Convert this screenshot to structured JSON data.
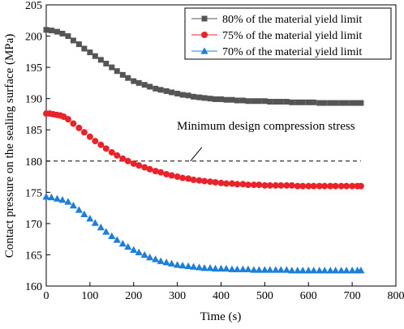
{
  "chart_data": {
    "type": "scatter",
    "xlabel": "Time (s)",
    "ylabel": "Contact pressure on the sealing surface (MPa)",
    "xlim": [
      0,
      800
    ],
    "ylim": [
      160,
      205
    ],
    "xticks": [
      0,
      100,
      200,
      300,
      400,
      500,
      600,
      700,
      800
    ],
    "yticks": [
      160,
      165,
      170,
      175,
      180,
      185,
      190,
      195,
      200,
      205
    ],
    "legend_position": "top-right",
    "series": [
      {
        "name": "80% of the material yield limit",
        "marker": "square",
        "color": "#555555",
        "x": [
          0,
          12,
          25,
          37,
          50,
          62,
          75,
          87,
          100,
          112,
          125,
          137,
          150,
          162,
          175,
          187,
          200,
          212,
          225,
          237,
          250,
          262,
          275,
          287,
          300,
          312,
          325,
          337,
          350,
          362,
          375,
          387,
          400,
          412,
          425,
          437,
          450,
          462,
          475,
          487,
          500,
          512,
          525,
          537,
          550,
          562,
          575,
          587,
          600,
          612,
          625,
          637,
          650,
          662,
          675,
          687,
          700,
          712,
          720
        ],
        "y": [
          201.0,
          200.9,
          200.7,
          200.4,
          200.0,
          199.3,
          198.7,
          198.0,
          197.4,
          196.8,
          196.2,
          195.6,
          195.0,
          194.4,
          193.8,
          193.3,
          192.8,
          192.5,
          192.2,
          191.9,
          191.6,
          191.4,
          191.2,
          191.0,
          190.8,
          190.6,
          190.5,
          190.3,
          190.2,
          190.1,
          190.0,
          189.9,
          189.9,
          189.8,
          189.8,
          189.7,
          189.7,
          189.6,
          189.6,
          189.6,
          189.6,
          189.5,
          189.5,
          189.5,
          189.5,
          189.4,
          189.4,
          189.4,
          189.4,
          189.4,
          189.3,
          189.3,
          189.3,
          189.3,
          189.3,
          189.3,
          189.3,
          189.3,
          189.3
        ]
      },
      {
        "name": "75% of the material yield limit",
        "marker": "circle",
        "color": "#e8242a",
        "x": [
          0,
          8,
          16,
          24,
          32,
          40,
          50,
          62,
          75,
          87,
          100,
          112,
          125,
          137,
          150,
          162,
          175,
          187,
          200,
          212,
          225,
          237,
          250,
          262,
          275,
          287,
          300,
          312,
          325,
          337,
          350,
          362,
          375,
          387,
          400,
          412,
          425,
          437,
          450,
          462,
          475,
          487,
          500,
          512,
          525,
          537,
          550,
          562,
          575,
          587,
          600,
          612,
          625,
          637,
          650,
          662,
          675,
          687,
          700,
          712,
          720
        ],
        "y": [
          187.6,
          187.6,
          187.5,
          187.4,
          187.3,
          187.1,
          186.7,
          186.0,
          185.3,
          184.6,
          183.9,
          183.2,
          182.6,
          182.0,
          181.4,
          180.9,
          180.4,
          180.0,
          179.6,
          179.3,
          179.0,
          178.7,
          178.4,
          178.2,
          177.9,
          177.7,
          177.5,
          177.3,
          177.2,
          177.0,
          176.9,
          176.8,
          176.7,
          176.6,
          176.5,
          176.4,
          176.4,
          176.3,
          176.3,
          176.2,
          176.2,
          176.2,
          176.1,
          176.1,
          176.1,
          176.1,
          176.1,
          176.1,
          176.0,
          176.0,
          176.0,
          176.0,
          176.0,
          176.0,
          176.0,
          176.0,
          176.0,
          176.0,
          176.0,
          176.0,
          176.0
        ]
      },
      {
        "name": "70% of the material yield limit",
        "marker": "triangle",
        "color": "#1f7fd6",
        "x": [
          0,
          12,
          25,
          37,
          50,
          62,
          75,
          87,
          100,
          112,
          125,
          137,
          150,
          162,
          175,
          187,
          200,
          212,
          225,
          237,
          250,
          262,
          275,
          287,
          300,
          312,
          325,
          337,
          350,
          362,
          375,
          387,
          400,
          412,
          425,
          437,
          450,
          462,
          475,
          487,
          500,
          512,
          525,
          537,
          550,
          562,
          575,
          587,
          600,
          612,
          625,
          637,
          650,
          662,
          675,
          687,
          700,
          712,
          720
        ],
        "y": [
          174.3,
          174.2,
          174.0,
          173.8,
          173.5,
          172.9,
          172.2,
          171.5,
          170.8,
          170.1,
          169.4,
          168.7,
          168.0,
          167.4,
          166.8,
          166.3,
          165.8,
          165.4,
          165.0,
          164.6,
          164.3,
          164.0,
          163.8,
          163.6,
          163.4,
          163.3,
          163.2,
          163.1,
          163.0,
          162.9,
          162.9,
          162.8,
          162.8,
          162.8,
          162.7,
          162.7,
          162.7,
          162.7,
          162.6,
          162.6,
          162.6,
          162.6,
          162.6,
          162.6,
          162.6,
          162.5,
          162.5,
          162.5,
          162.5,
          162.5,
          162.5,
          162.5,
          162.5,
          162.5,
          162.5,
          162.5,
          162.5,
          162.5,
          162.5
        ]
      }
    ],
    "reference_line": {
      "label": "Minimum design compression stress",
      "y": 180,
      "x_range": [
        0,
        720
      ],
      "style": "dashed",
      "arrow_points_to_x": 330
    }
  }
}
